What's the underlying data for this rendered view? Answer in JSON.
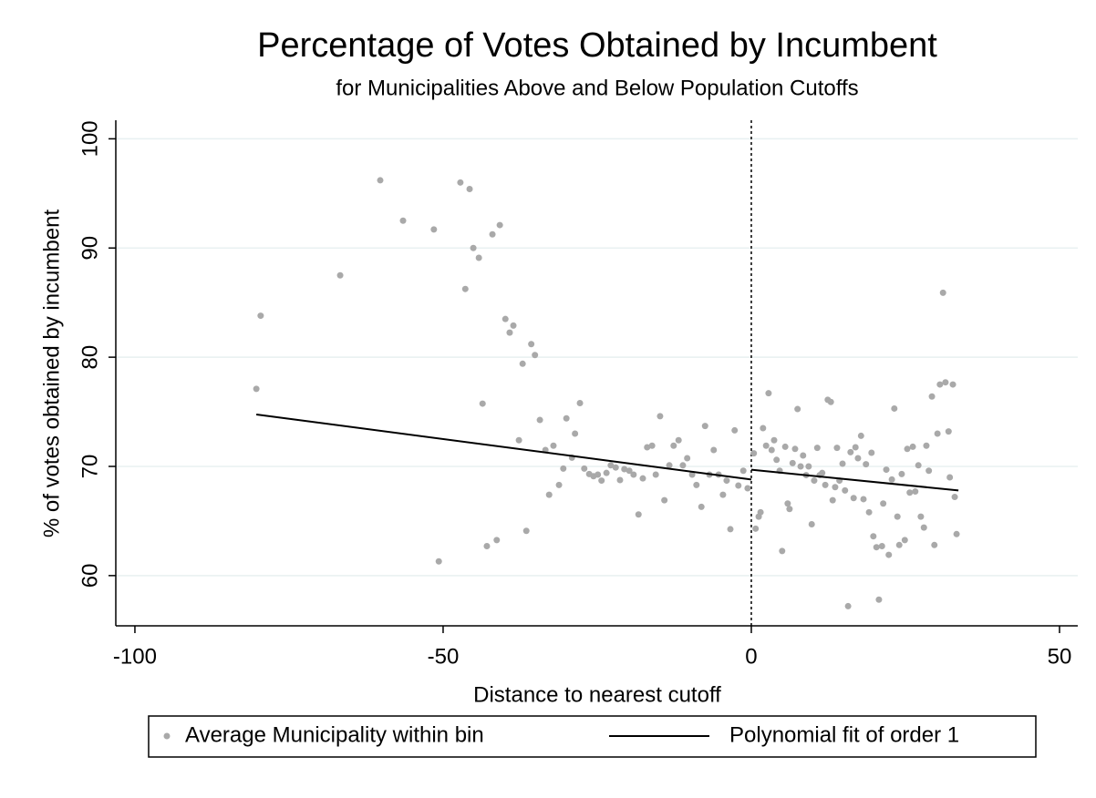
{
  "chart_data": {
    "type": "scatter",
    "title": "Percentage of Votes Obtained by Incumbent",
    "subtitle": "for Municipalities Above and Below Population Cutoffs",
    "x_label": "Distance to nearest cutoff",
    "y_label": "% of votes obtained by incumbent",
    "xlim": [
      -103.1,
      52.96
    ],
    "xticks": [
      -100,
      -50,
      0,
      50
    ],
    "ylim": [
      55.4,
      101.7
    ],
    "yticks": [
      60,
      70,
      80,
      90,
      100
    ],
    "grid": true,
    "vline": 0,
    "legend": "bottom",
    "series": [
      {
        "name": "Average Municipality within bin",
        "color": "#a9a9a9",
        "style": "points",
        "x": [
          -80.3,
          -79.6,
          -66.7,
          -60.2,
          -56.5,
          -51.5,
          -50.7,
          -47.2,
          -46.4,
          -45.7,
          -45.1,
          -44.2,
          -42.0,
          -40.8,
          -43.6,
          -42.9,
          -41.3,
          -39.9,
          -39.2,
          -38.6,
          -37.7,
          -37.1,
          -36.5,
          -35.7,
          -35.1,
          -34.3,
          -33.4,
          -32.8,
          -32.1,
          -31.2,
          -30.5,
          -30.0,
          -29.1,
          -28.6,
          -27.8,
          -27.1,
          -26.3,
          -25.6,
          -24.9,
          -24.3,
          -23.5,
          -22.8,
          -22.0,
          -21.3,
          -20.6,
          -19.8,
          -19.1,
          -18.3,
          -17.6,
          -16.9,
          -16.1,
          -15.5,
          -14.8,
          -14.1,
          -13.3,
          -12.6,
          -11.8,
          -11.1,
          -10.4,
          -9.6,
          -8.9,
          -8.1,
          -7.5,
          -6.8,
          -6.1,
          -5.3,
          -4.6,
          -4.0,
          -3.4,
          -2.7,
          -2.1,
          -1.3,
          -0.6,
          0.4,
          0.7,
          1.2,
          1.5,
          1.9,
          2.4,
          2.8,
          3.3,
          3.7,
          4.1,
          4.6,
          5.0,
          5.5,
          5.9,
          6.2,
          6.7,
          7.1,
          7.5,
          8.0,
          8.4,
          8.9,
          9.3,
          9.8,
          10.2,
          10.7,
          11.1,
          11.5,
          12.0,
          12.4,
          12.9,
          13.2,
          13.6,
          13.9,
          14.3,
          14.8,
          15.2,
          15.7,
          16.1,
          16.6,
          16.9,
          17.3,
          17.8,
          18.2,
          18.6,
          19.1,
          19.5,
          19.8,
          20.3,
          20.7,
          21.2,
          21.4,
          21.9,
          22.3,
          22.8,
          23.2,
          23.7,
          24.0,
          24.4,
          24.9,
          25.3,
          25.7,
          26.2,
          26.6,
          27.1,
          27.5,
          28.0,
          28.4,
          28.8,
          29.3,
          29.7,
          30.2,
          30.6,
          31.1,
          31.5,
          32.0,
          32.2,
          32.7,
          33.0,
          33.3
        ],
        "values": [
          77.1,
          83.8,
          87.5,
          96.2,
          92.5,
          91.7,
          61.3,
          96.0,
          86.25,
          95.4,
          90.0,
          89.1,
          91.25,
          92.1,
          75.75,
          62.7,
          63.25,
          83.5,
          82.25,
          82.9,
          72.4,
          79.4,
          64.1,
          81.2,
          80.2,
          74.25,
          71.5,
          67.4,
          71.9,
          68.3,
          69.8,
          74.4,
          70.8,
          73.0,
          75.8,
          69.8,
          69.3,
          69.1,
          69.25,
          68.7,
          69.4,
          70.1,
          69.9,
          68.75,
          69.75,
          69.6,
          69.25,
          65.6,
          68.9,
          71.75,
          71.9,
          69.25,
          74.6,
          66.9,
          70.1,
          71.9,
          72.4,
          70.1,
          70.75,
          69.25,
          68.3,
          66.3,
          73.7,
          69.25,
          71.5,
          69.25,
          67.4,
          68.7,
          64.25,
          73.3,
          68.25,
          69.6,
          68.0,
          71.2,
          64.3,
          65.4,
          65.8,
          73.5,
          71.9,
          76.7,
          71.5,
          72.4,
          70.6,
          69.6,
          62.25,
          71.8,
          66.6,
          66.1,
          70.3,
          71.6,
          75.25,
          70.0,
          71.0,
          69.2,
          70.0,
          64.7,
          68.7,
          71.7,
          69.2,
          69.4,
          68.3,
          76.1,
          75.9,
          66.9,
          68.1,
          71.7,
          68.7,
          70.25,
          67.8,
          57.2,
          71.3,
          67.1,
          71.75,
          70.75,
          72.8,
          67.0,
          70.2,
          65.8,
          71.25,
          63.6,
          62.6,
          57.8,
          62.7,
          66.6,
          69.7,
          61.9,
          68.8,
          75.3,
          65.4,
          62.8,
          69.3,
          63.25,
          71.6,
          67.6,
          71.8,
          67.7,
          70.1,
          65.4,
          64.4,
          71.9,
          69.6,
          76.4,
          62.8,
          73.0,
          77.5,
          85.9,
          77.7,
          73.2,
          69.0,
          77.5,
          67.2,
          63.8
        ]
      },
      {
        "name": "Polynomial fit of order 1",
        "color": "#000000",
        "style": "line",
        "x": [
          -80.3,
          0,
          null,
          0,
          33.6
        ],
        "values": [
          74.75,
          68.8,
          null,
          69.7,
          67.8
        ]
      }
    ]
  }
}
